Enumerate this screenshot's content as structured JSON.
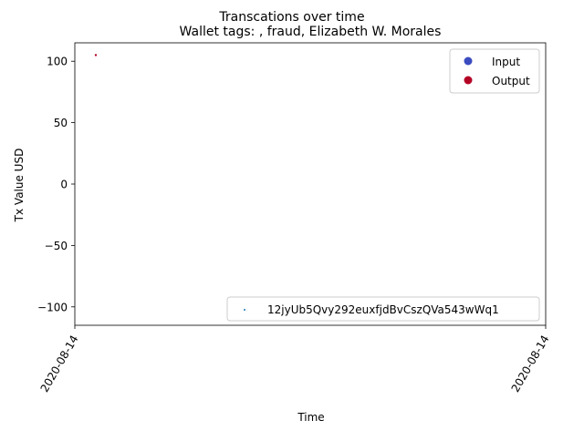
{
  "chart_data": {
    "type": "scatter",
    "title": "Transcations over time",
    "subtitle": "Wallet tags: , fraud, Elizabeth W. Morales",
    "xlabel": "Time",
    "ylabel": "Tx Value USD",
    "ylim": [
      -115,
      115
    ],
    "yticks": [
      100,
      50,
      0,
      -50,
      -100
    ],
    "ytick_labels": [
      "100",
      "50",
      "0",
      "−50",
      "−100"
    ],
    "xticks": [
      "2020-08-14",
      "2020-08-14"
    ],
    "grid": false,
    "legend_upper": {
      "placement": "top-right",
      "entries": [
        {
          "label": "Input",
          "color": "#3b4cc0"
        },
        {
          "label": "Output",
          "color": "#b40426"
        }
      ]
    },
    "legend_lower": {
      "placement": "bottom-right",
      "entries": [
        {
          "label": "12jyUb5Qvy292euxfjdBvCszQVa543wWq1",
          "color": "#1f77b4"
        }
      ]
    },
    "series": [
      {
        "name": "Output",
        "color": "#b40426",
        "points": [
          {
            "x": "2020-08-14",
            "y": 105
          }
        ]
      }
    ]
  }
}
